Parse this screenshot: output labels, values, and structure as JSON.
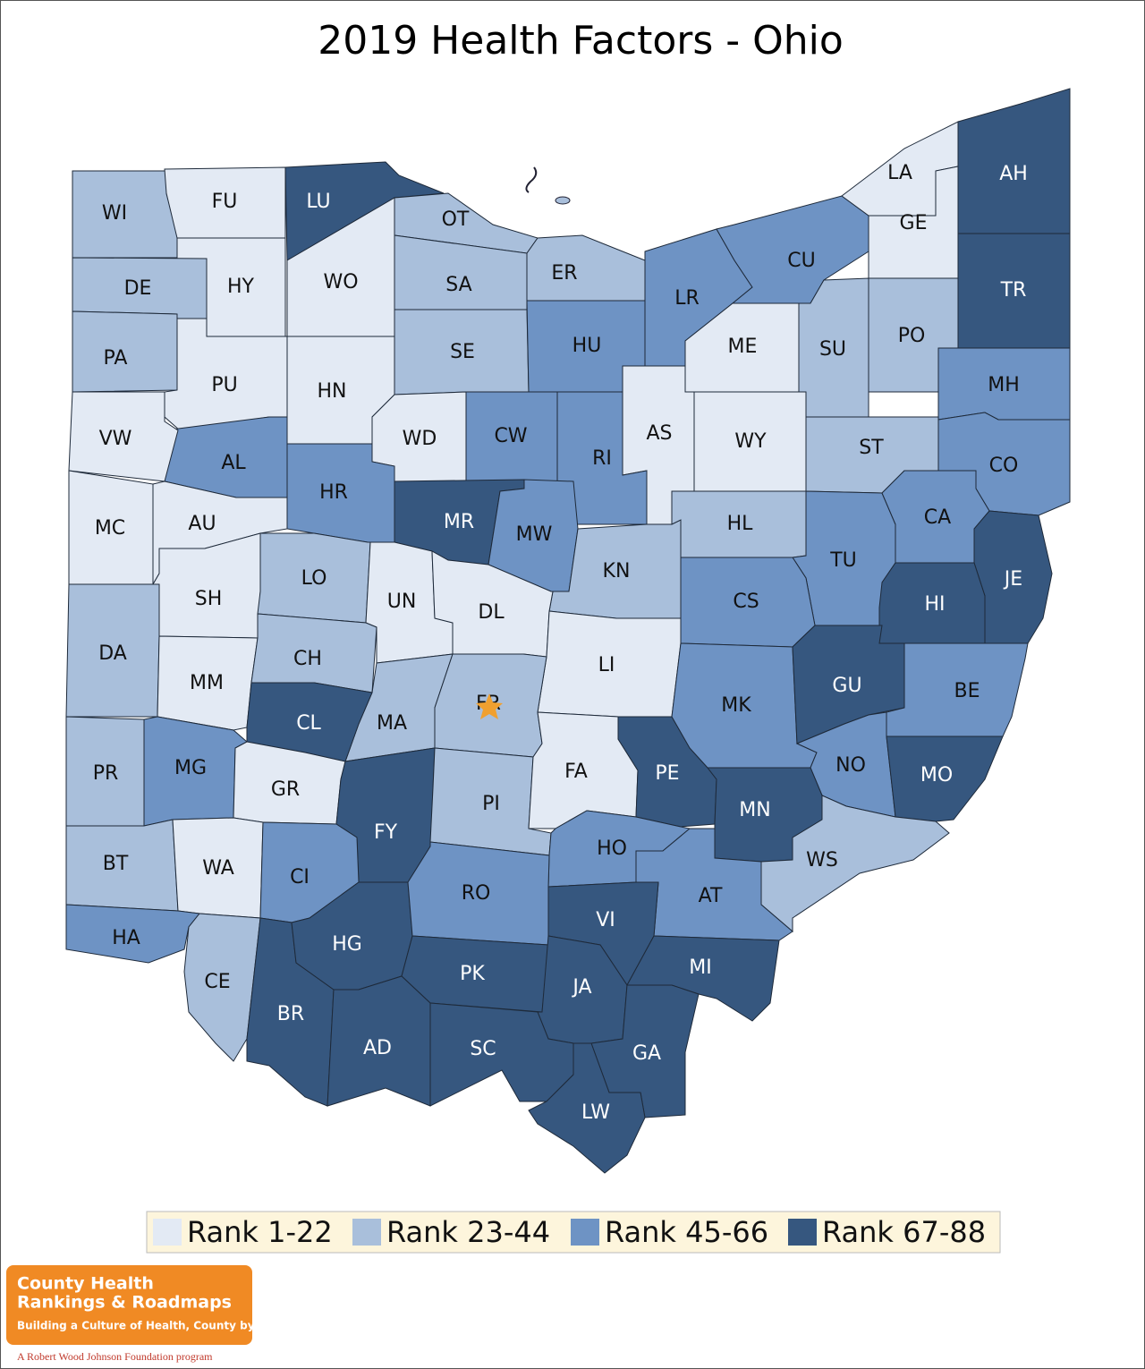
{
  "title": "2019 Health Factors - Ohio",
  "legend": [
    {
      "label": "Rank 1-22",
      "color": "#e3eaf4"
    },
    {
      "label": "Rank 23-44",
      "color": "#a9bfdb"
    },
    {
      "label": "Rank 45-66",
      "color": "#6e93c4"
    },
    {
      "label": "Rank 67-88",
      "color": "#36577f"
    }
  ],
  "counties": [
    {
      "label": "WI",
      "color": "#a9bfdb"
    },
    {
      "label": "FU",
      "color": "#e3eaf4"
    },
    {
      "label": "LU",
      "color": "#36577f"
    },
    {
      "label": "WO",
      "color": "#e3eaf4"
    },
    {
      "label": "OT",
      "color": "#a9bfdb"
    },
    {
      "label": "HY",
      "color": "#e3eaf4"
    },
    {
      "label": "DE",
      "color": "#a9bfdb"
    },
    {
      "label": "PA",
      "color": "#a9bfdb"
    },
    {
      "label": "PU",
      "color": "#e3eaf4"
    },
    {
      "label": "HN",
      "color": "#e3eaf4"
    },
    {
      "label": "SA",
      "color": "#a9bfdb"
    },
    {
      "label": "ER",
      "color": "#a9bfdb"
    },
    {
      "label": "SE",
      "color": "#a9bfdb"
    },
    {
      "label": "HU",
      "color": "#6e93c4"
    },
    {
      "label": "LR",
      "color": "#6e93c4"
    },
    {
      "label": "CU",
      "color": "#6e93c4"
    },
    {
      "label": "LA",
      "color": "#e3eaf4"
    },
    {
      "label": "GE",
      "color": "#e3eaf4"
    },
    {
      "label": "AH",
      "color": "#36577f"
    },
    {
      "label": "TR",
      "color": "#36577f"
    },
    {
      "label": "PO",
      "color": "#a9bfdb"
    },
    {
      "label": "SU",
      "color": "#a9bfdb"
    },
    {
      "label": "ME",
      "color": "#e3eaf4"
    },
    {
      "label": "MH",
      "color": "#6e93c4"
    },
    {
      "label": "CO",
      "color": "#6e93c4"
    },
    {
      "label": "ST",
      "color": "#a9bfdb"
    },
    {
      "label": "WY",
      "color": "#e3eaf4"
    },
    {
      "label": "AS",
      "color": "#e3eaf4"
    },
    {
      "label": "RI",
      "color": "#6e93c4"
    },
    {
      "label": "CW",
      "color": "#6e93c4"
    },
    {
      "label": "WD",
      "color": "#e3eaf4"
    },
    {
      "label": "AL",
      "color": "#6e93c4"
    },
    {
      "label": "VW",
      "color": "#e3eaf4"
    },
    {
      "label": "HR",
      "color": "#6e93c4"
    },
    {
      "label": "MR",
      "color": "#36577f"
    },
    {
      "label": "MW",
      "color": "#6e93c4"
    },
    {
      "label": "KN",
      "color": "#a9bfdb"
    },
    {
      "label": "HL",
      "color": "#a9bfdb"
    },
    {
      "label": "TU",
      "color": "#6e93c4"
    },
    {
      "label": "CA",
      "color": "#6e93c4"
    },
    {
      "label": "JE",
      "color": "#36577f"
    },
    {
      "label": "HI",
      "color": "#36577f"
    },
    {
      "label": "MC",
      "color": "#e3eaf4"
    },
    {
      "label": "AU",
      "color": "#e3eaf4"
    },
    {
      "label": "SH",
      "color": "#e3eaf4"
    },
    {
      "label": "LO",
      "color": "#a9bfdb"
    },
    {
      "label": "UN",
      "color": "#e3eaf4"
    },
    {
      "label": "DL",
      "color": "#e3eaf4"
    },
    {
      "label": "CS",
      "color": "#6e93c4"
    },
    {
      "label": "LI",
      "color": "#e3eaf4"
    },
    {
      "label": "DA",
      "color": "#a9bfdb"
    },
    {
      "label": "MM",
      "color": "#e3eaf4"
    },
    {
      "label": "CH",
      "color": "#a9bfdb"
    },
    {
      "label": "MA",
      "color": "#a9bfdb"
    },
    {
      "label": "FR",
      "color": "#a9bfdb"
    },
    {
      "label": "CL",
      "color": "#36577f"
    },
    {
      "label": "PR",
      "color": "#a9bfdb"
    },
    {
      "label": "MG",
      "color": "#6e93c4"
    },
    {
      "label": "GR",
      "color": "#e3eaf4"
    },
    {
      "label": "FY",
      "color": "#36577f"
    },
    {
      "label": "PI",
      "color": "#a9bfdb"
    },
    {
      "label": "FA",
      "color": "#e3eaf4"
    },
    {
      "label": "PE",
      "color": "#36577f"
    },
    {
      "label": "MK",
      "color": "#6e93c4"
    },
    {
      "label": "GU",
      "color": "#36577f"
    },
    {
      "label": "BE",
      "color": "#6e93c4"
    },
    {
      "label": "NO",
      "color": "#6e93c4"
    },
    {
      "label": "MO",
      "color": "#36577f"
    },
    {
      "label": "MN",
      "color": "#36577f"
    },
    {
      "label": "WS",
      "color": "#a9bfdb"
    },
    {
      "label": "HO",
      "color": "#6e93c4"
    },
    {
      "label": "AT",
      "color": "#6e93c4"
    },
    {
      "label": "BT",
      "color": "#a9bfdb"
    },
    {
      "label": "WA",
      "color": "#e3eaf4"
    },
    {
      "label": "CI",
      "color": "#6e93c4"
    },
    {
      "label": "HA",
      "color": "#6e93c4"
    },
    {
      "label": "CE",
      "color": "#a9bfdb"
    },
    {
      "label": "BR",
      "color": "#36577f"
    },
    {
      "label": "HG",
      "color": "#36577f"
    },
    {
      "label": "RO",
      "color": "#6e93c4"
    },
    {
      "label": "VI",
      "color": "#36577f"
    },
    {
      "label": "PK",
      "color": "#36577f"
    },
    {
      "label": "JA",
      "color": "#36577f"
    },
    {
      "label": "MI",
      "color": "#36577f"
    },
    {
      "label": "GA",
      "color": "#36577f"
    },
    {
      "label": "AD",
      "color": "#36577f"
    },
    {
      "label": "SC",
      "color": "#36577f"
    },
    {
      "label": "LW",
      "color": "#36577f"
    }
  ],
  "logo": {
    "line1": "County Health",
    "line2": "Rankings & Roadmaps",
    "tagline": "Building a Culture of Health, County by County",
    "footer": "A Robert Wood Johnson Foundation program"
  }
}
